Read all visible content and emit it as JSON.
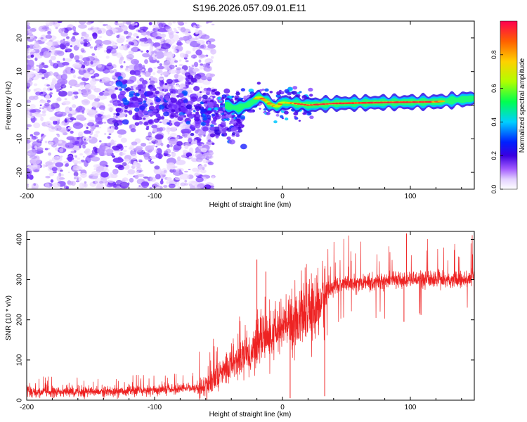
{
  "title": "S196.2026.057.09.01.E11",
  "chart_data": [
    {
      "type": "heatmap",
      "name": "spectrogram",
      "xlabel": "Height of straight line (km)",
      "ylabel": "Frequency (Hz)",
      "xlim": [
        -200,
        150
      ],
      "ylim": [
        -25,
        25
      ],
      "xticks": [
        -200,
        -100,
        0,
        100
      ],
      "yticks": [
        -20,
        -10,
        0,
        10,
        20
      ],
      "colorbar": {
        "label": "Normalized spectral amplitude",
        "range": [
          0.0,
          1.0
        ],
        "ticks": [
          0.0,
          0.2,
          0.4,
          0.6,
          0.8
        ],
        "tick_labels": [
          "0.0",
          "0.2",
          "0.4",
          "0.6",
          "0.8"
        ],
        "colors": [
          "#ffffff",
          "#d9c2ff",
          "#9b4dff",
          "#3b00e8",
          "#0030ff",
          "#00d8ff",
          "#00ff60",
          "#d8ff00",
          "#ff8800",
          "#ff0040"
        ]
      },
      "features": {
        "noise_region_x": [
          -200,
          -60
        ],
        "carrier_start_x": -65,
        "carrier_end_x": 150,
        "carrier_track": [
          [
            -65,
            0.5
          ],
          [
            -55,
            1.0
          ],
          [
            -45,
            0.0
          ],
          [
            -35,
            -1.0
          ],
          [
            -25,
            0.5
          ],
          [
            -18,
            2.5
          ],
          [
            -10,
            0.5
          ],
          [
            -5,
            -0.5
          ],
          [
            0,
            0.8
          ],
          [
            10,
            0.5
          ],
          [
            20,
            0.0
          ],
          [
            40,
            0.5
          ],
          [
            80,
            0.8
          ],
          [
            120,
            1.0
          ],
          [
            150,
            2.0
          ]
        ]
      }
    },
    {
      "type": "line",
      "name": "snr",
      "xlabel": "Height of straight line (km)",
      "ylabel": "SNR (10 * v/v)",
      "xlim": [
        -200,
        150
      ],
      "ylim": [
        0,
        420
      ],
      "xticks": [
        -200,
        -100,
        0,
        100
      ],
      "yticks": [
        0,
        100,
        200,
        300,
        400
      ],
      "color": "#ee2222",
      "series": [
        {
          "name": "SNR",
          "x": [
            -200,
            -180,
            -160,
            -140,
            -120,
            -100,
            -80,
            -65,
            -60,
            -55,
            -50,
            -45,
            -40,
            -35,
            -30,
            -25,
            -20,
            -15,
            -10,
            -5,
            0,
            5,
            10,
            15,
            20,
            25,
            30,
            35,
            40,
            50,
            60,
            70,
            80,
            90,
            100,
            110,
            120,
            130,
            140,
            150
          ],
          "y": [
            20,
            20,
            21,
            22,
            22,
            25,
            28,
            30,
            35,
            45,
            60,
            75,
            90,
            100,
            120,
            110,
            140,
            160,
            150,
            170,
            180,
            190,
            200,
            210,
            215,
            225,
            245,
            265,
            285,
            290,
            290,
            295,
            295,
            300,
            300,
            300,
            300,
            300,
            300,
            305
          ]
        }
      ],
      "spikes": [
        {
          "x": -20,
          "y": 350
        },
        {
          "x": -13,
          "y": 320
        },
        {
          "x": 6,
          "y": 5
        },
        {
          "x": 33,
          "y": 10
        },
        {
          "x": 95,
          "y": 195
        },
        {
          "x": 97,
          "y": 415
        }
      ]
    }
  ]
}
